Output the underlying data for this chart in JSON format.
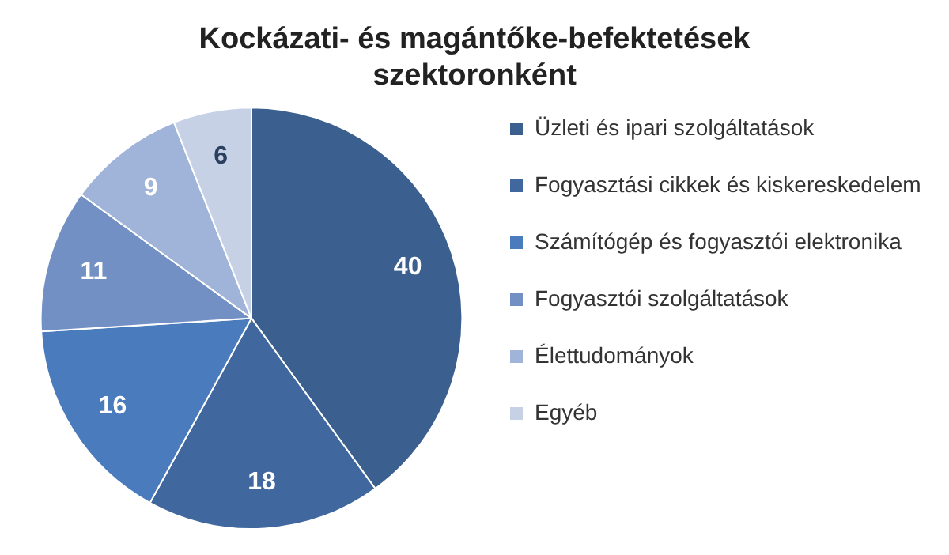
{
  "chart_data": {
    "type": "pie",
    "title": "Kockázati- és magántőke-befektetések szektoronként",
    "categories": [
      "Üzleti és ipari szolgáltatások",
      "Fogyasztási cikkek és kiskereskedelem",
      "Számítógép és fogyasztói elektronika",
      "Fogyasztói szolgáltatások",
      "Élettudományok",
      "Egyéb"
    ],
    "values": [
      40,
      18,
      16,
      11,
      9,
      6
    ],
    "colors": [
      "#3b5f8e",
      "#40689f",
      "#4a7bbd",
      "#7390c4",
      "#a0b3d8",
      "#c6d1e6"
    ],
    "data_labels": true,
    "legend": "right"
  }
}
